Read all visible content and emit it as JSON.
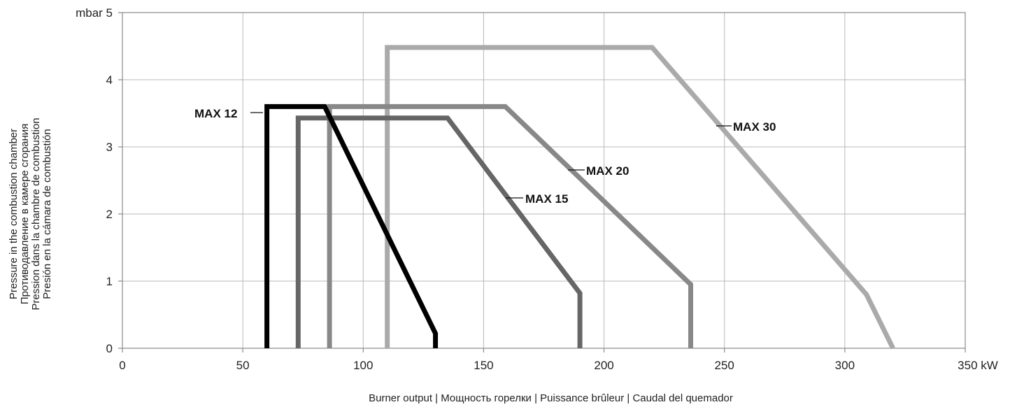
{
  "chart_data": {
    "type": "line",
    "xlabel": "Burner output | Мощность горелки | Puissance brûleur | Caudal del quemador",
    "ylabel_lines": [
      "Pressure in the combustion chamber",
      "Противодавление в камере сгорания",
      "Pression dans la chambre de combustion",
      "Presión en la cámara de combustión"
    ],
    "xlim": [
      0,
      350
    ],
    "ylim": [
      0,
      5
    ],
    "x_ticks": [
      {
        "value": 0,
        "label": "0"
      },
      {
        "value": 50,
        "label": "50"
      },
      {
        "value": 100,
        "label": "100"
      },
      {
        "value": 150,
        "label": "150"
      },
      {
        "value": 200,
        "label": "200"
      },
      {
        "value": 250,
        "label": "250"
      },
      {
        "value": 300,
        "label": "300"
      },
      {
        "value": 350,
        "label": "350 kW"
      }
    ],
    "y_ticks": [
      {
        "value": 0,
        "label": "0"
      },
      {
        "value": 1,
        "label": "1"
      },
      {
        "value": 2,
        "label": "2"
      },
      {
        "value": 3,
        "label": "3"
      },
      {
        "value": 4,
        "label": "4"
      },
      {
        "value": 5,
        "label": "mbar 5"
      }
    ],
    "grid": true,
    "series": [
      {
        "name": "MAX 12",
        "color": "#000000",
        "x": [
          60,
          60,
          84,
          130,
          130
        ],
        "y": [
          0,
          3.6,
          3.6,
          0.22,
          0
        ]
      },
      {
        "name": "MAX 15",
        "color": "#666666",
        "x": [
          73,
          73,
          135,
          190,
          190
        ],
        "y": [
          0,
          3.43,
          3.43,
          0.82,
          0
        ]
      },
      {
        "name": "MAX 20",
        "color": "#888888",
        "x": [
          86,
          86,
          159,
          236,
          236
        ],
        "y": [
          0,
          3.6,
          3.6,
          0.95,
          0
        ]
      },
      {
        "name": "MAX 30",
        "color": "#aaaaaa",
        "x": [
          110,
          110,
          220,
          309,
          320
        ],
        "y": [
          0,
          4.48,
          4.48,
          0.8,
          0
        ]
      }
    ]
  }
}
